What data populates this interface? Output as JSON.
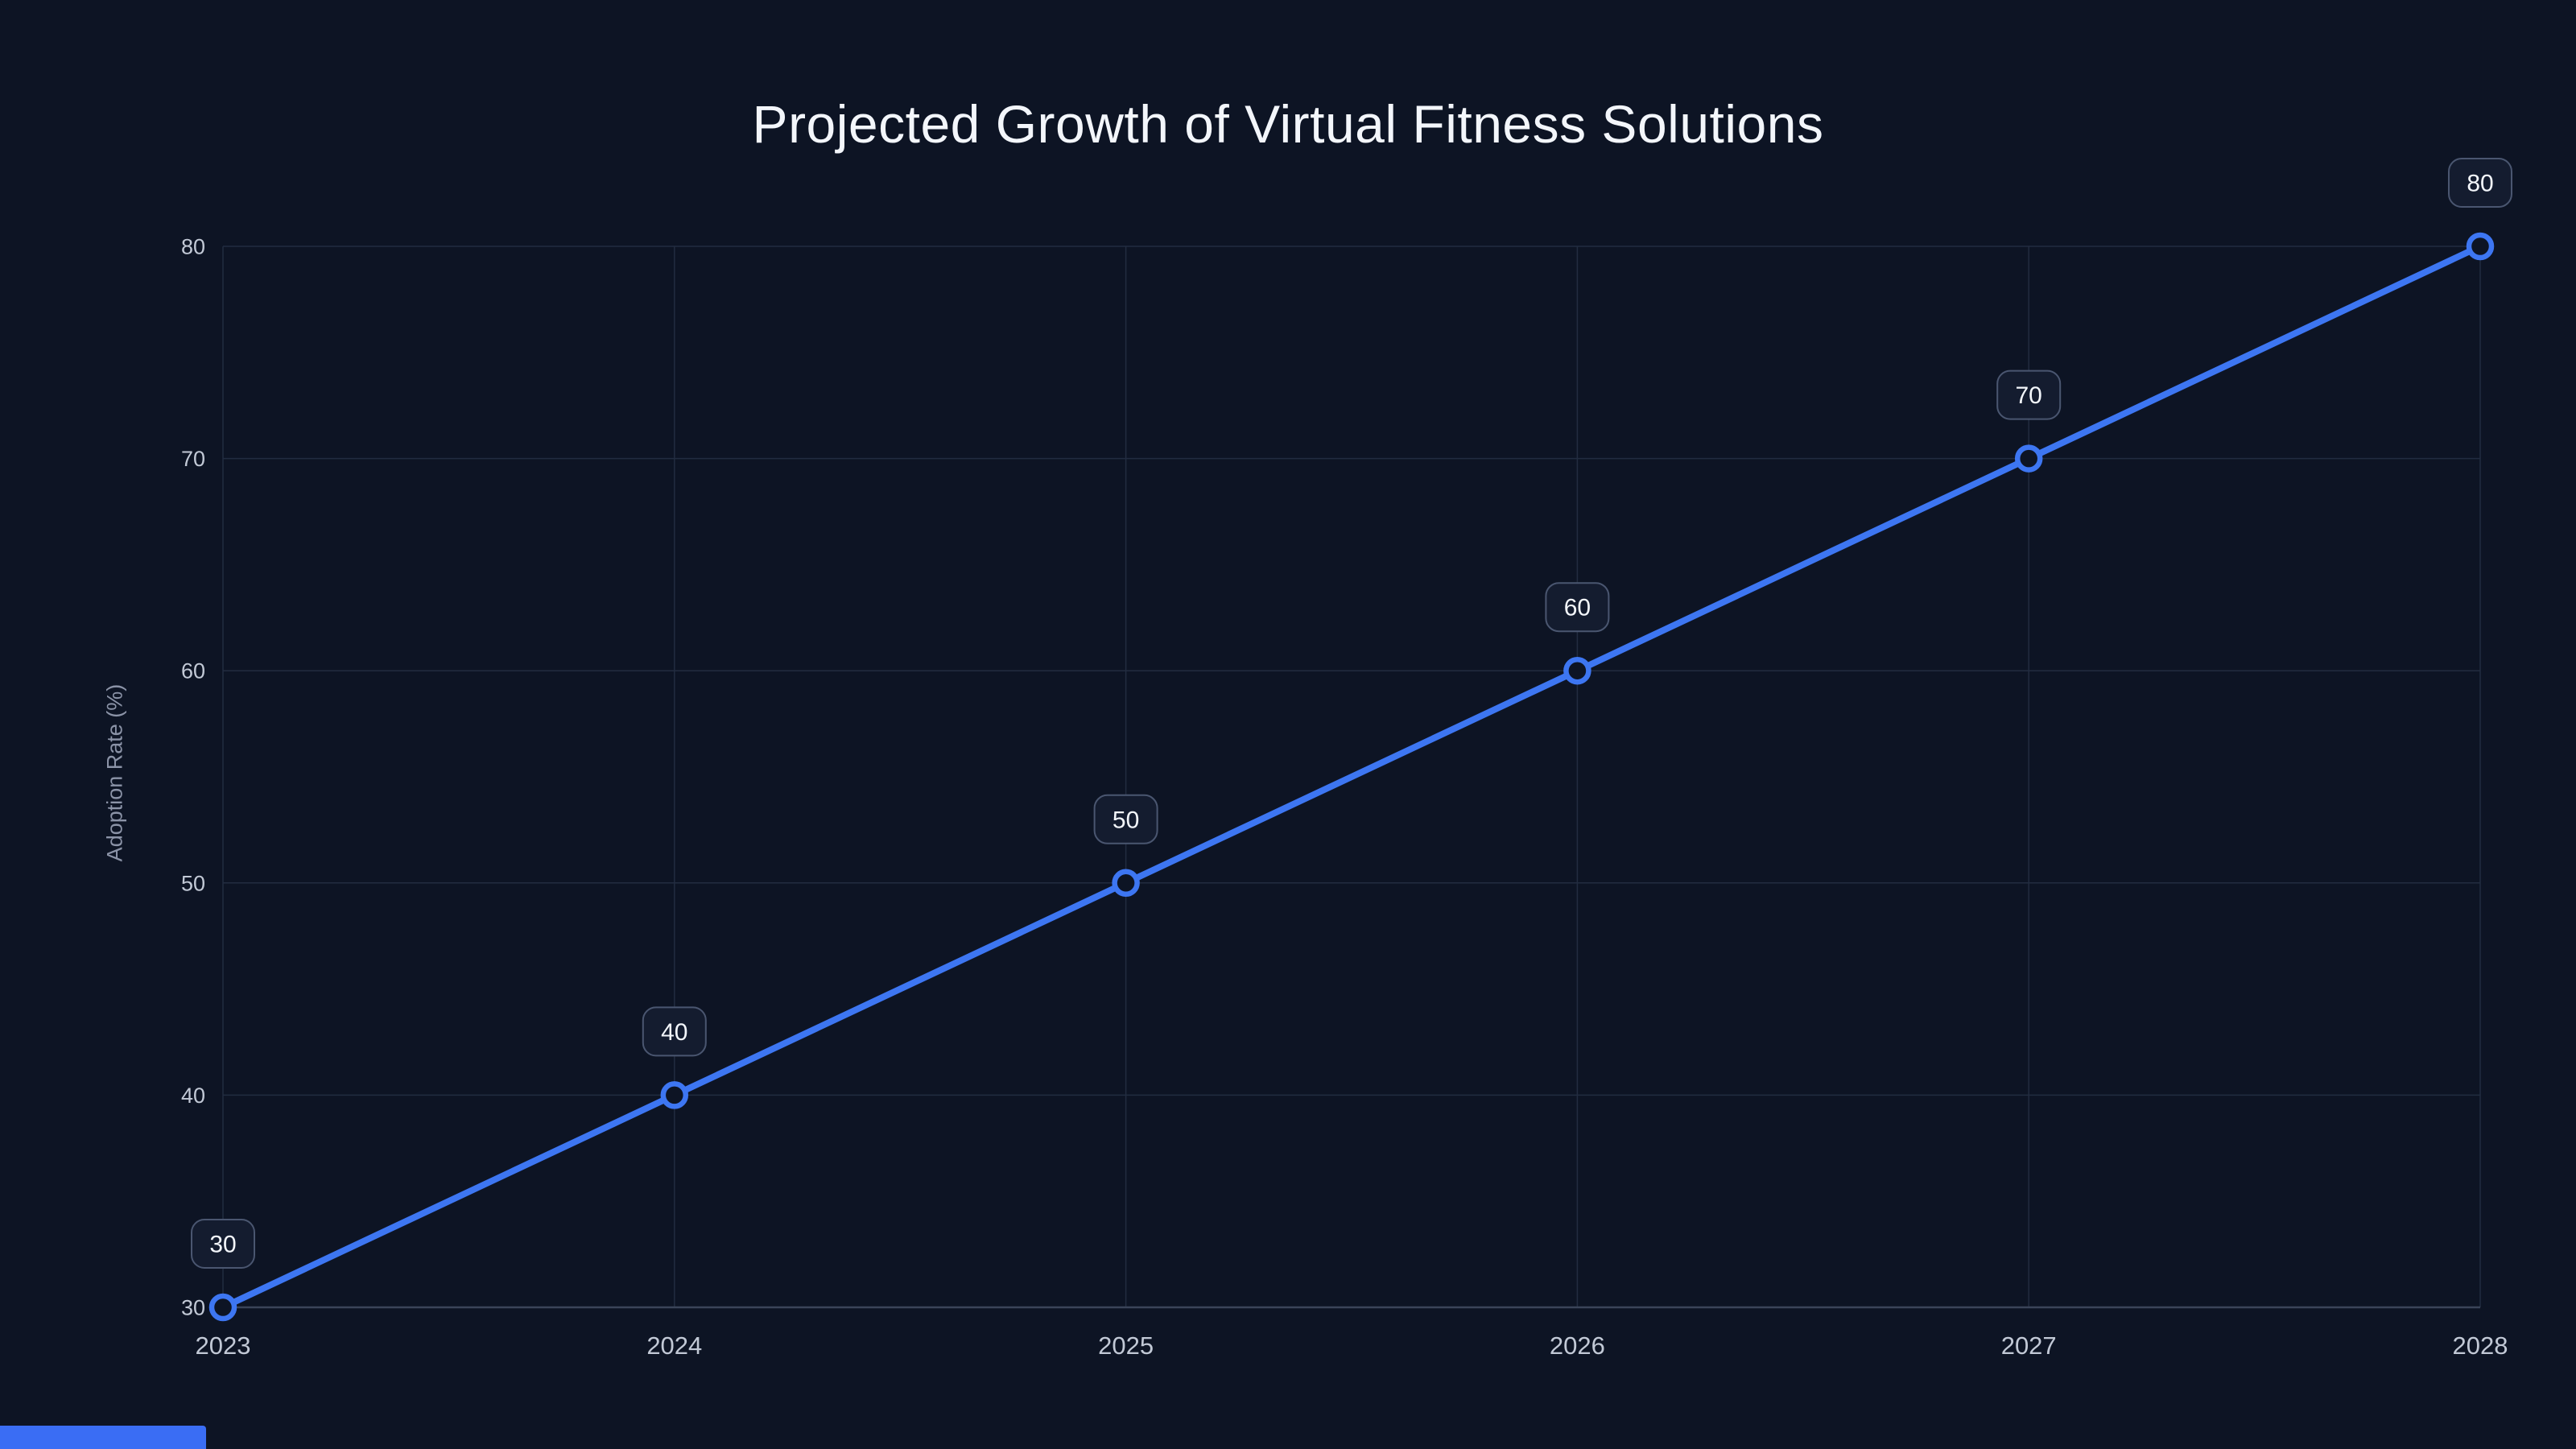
{
  "page": {
    "background_color": "#0d1424"
  },
  "chart_data": {
    "type": "line",
    "title": "Projected Growth of Virtual Fitness Solutions",
    "categories": [
      "2023",
      "2024",
      "2025",
      "2026",
      "2027",
      "2028"
    ],
    "series": [
      {
        "name": "Adoption Rate",
        "values": [
          30,
          40,
          50,
          60,
          70,
          80
        ]
      }
    ],
    "point_labels": [
      "30",
      "40",
      "50",
      "60",
      "70",
      "80"
    ],
    "xlabel": "",
    "ylabel": "Adoption Rate (%)",
    "ylim": [
      30,
      80
    ],
    "yticks": [
      30,
      40,
      50,
      60,
      70,
      80
    ],
    "grid": true,
    "legend": false,
    "colors": {
      "line": "#3d76f2",
      "marker_fill": "#0d1424",
      "grid": "#222c40",
      "axis": "#3a4459",
      "title_text": "#f3f6fb",
      "tick_text": "#c2c9d6",
      "axis_label_text": "#8b93a7",
      "badge_bg": "#141c2f",
      "badge_border": "#4a5670",
      "badge_text": "#f3f6fb"
    }
  },
  "footer": {
    "accent_bar_color": "#3a6df4"
  }
}
